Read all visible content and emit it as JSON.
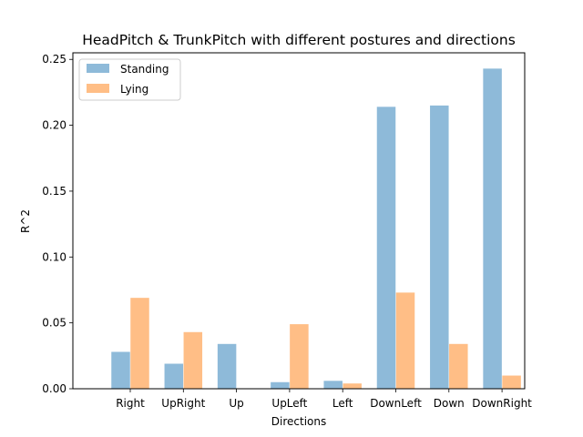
{
  "chart_data": {
    "type": "bar",
    "title": "HeadPitch & TrunkPitch with different postures and directions",
    "xlabel": "Directions",
    "ylabel": "R^2",
    "categories": [
      "Right",
      "UpRight",
      "Up",
      "UpLeft",
      "Left",
      "DownLeft",
      "Down",
      "DownRight"
    ],
    "series": [
      {
        "name": "Standing",
        "color": "#8ebad9",
        "values": [
          0.028,
          0.019,
          0.034,
          0.005,
          0.006,
          0.214,
          0.215,
          0.243
        ]
      },
      {
        "name": "Lying",
        "color": "#ffbe86",
        "values": [
          0.069,
          0.043,
          0.0,
          0.049,
          0.004,
          0.073,
          0.034,
          0.01
        ]
      }
    ],
    "yticks": [
      "0.00",
      "0.05",
      "0.10",
      "0.15",
      "0.20",
      "0.25"
    ],
    "ylim": [
      0,
      0.255
    ],
    "grid": false,
    "legend_position": "top-left"
  }
}
